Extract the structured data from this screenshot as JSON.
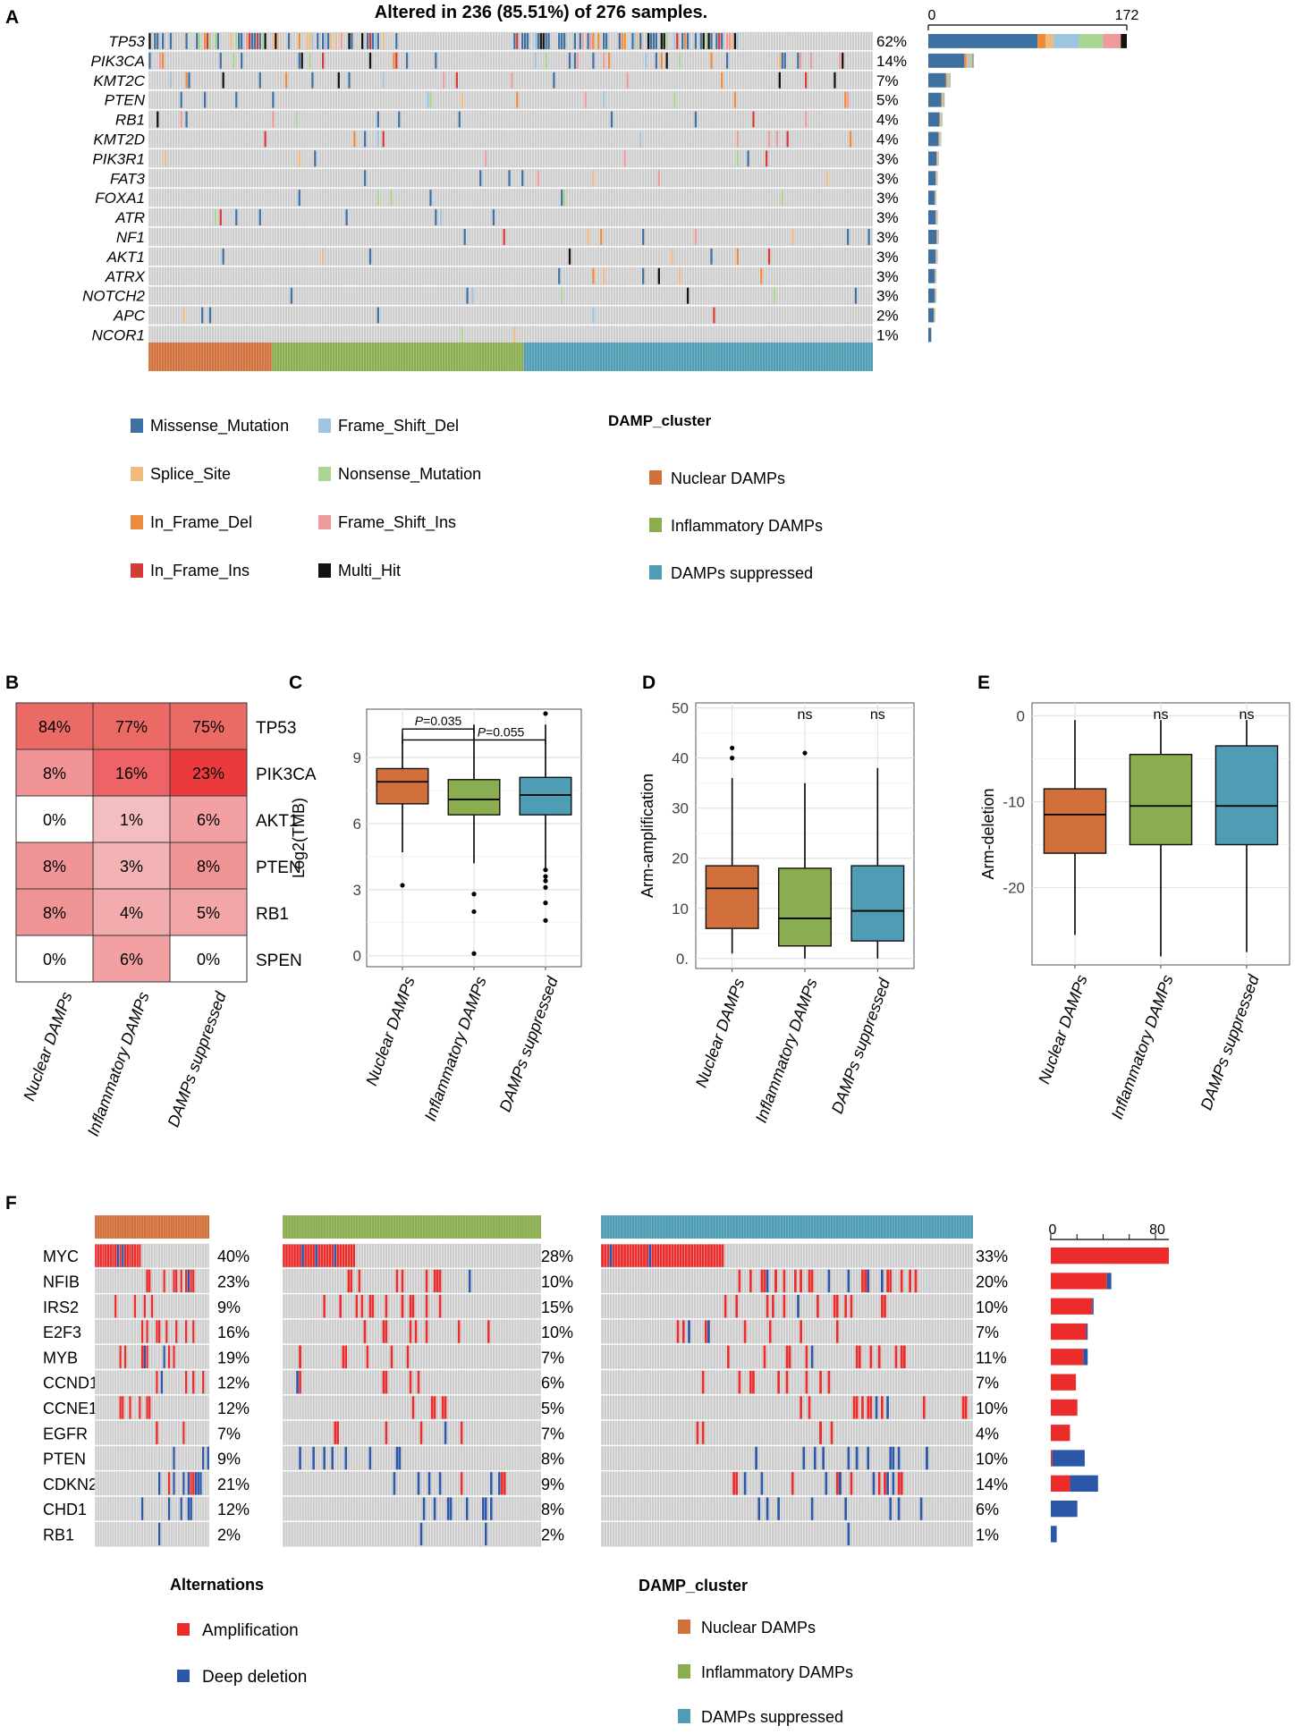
{
  "colors": {
    "missense": "#3e70a2",
    "frame_shift_del": "#9fc4de",
    "splice_site": "#f0b97d",
    "nonsense": "#a9d591",
    "in_frame_del": "#ec8a3d",
    "frame_shift_ins": "#ee999c",
    "in_frame_ins": "#d63a37",
    "multi_hit": "#111111",
    "nuclear": "#d2703b",
    "inflammatory": "#8aad4f",
    "suppressed": "#4e9db4",
    "bg_cell": "#cccccc",
    "amp": "#ec2b2b",
    "del": "#2c57a8",
    "box_line": "#000000"
  },
  "panel_labels": {
    "A": "A",
    "B": "B",
    "C": "C",
    "D": "D",
    "E": "E",
    "F": "F"
  },
  "panelA": {
    "title": "Altered in 236 (85.51%) of 276 samples.",
    "genes": [
      "TP53",
      "PIK3CA",
      "KMT2C",
      "PTEN",
      "RB1",
      "KMT2D",
      "PIK3R1",
      "FAT3",
      "FOXA1",
      "ATR",
      "NF1",
      "AKT1",
      "ATRX",
      "NOTCH2",
      "APC",
      "NCOR1"
    ],
    "percents": [
      "62%",
      "14%",
      "7%",
      "5%",
      "4%",
      "4%",
      "3%",
      "3%",
      "3%",
      "3%",
      "3%",
      "3%",
      "3%",
      "3%",
      "2%",
      "1%"
    ],
    "counts": [
      172,
      39,
      19,
      14,
      12,
      11,
      9,
      8,
      7,
      8,
      9,
      8,
      7,
      7,
      6,
      3
    ],
    "axis_min_label": "0",
    "axis_max_label": "172",
    "axis_max": 172,
    "n_samples": 276,
    "group_sizes": [
      47,
      96,
      133
    ]
  },
  "legendA": {
    "items": [
      {
        "label": "Missense_Mutation",
        "key": "missense"
      },
      {
        "label": "Frame_Shift_Del",
        "key": "frame_shift_del"
      },
      {
        "label": "Splice_Site",
        "key": "splice_site"
      },
      {
        "label": "Nonsense_Mutation",
        "key": "nonsense"
      },
      {
        "label": "In_Frame_Del",
        "key": "in_frame_del"
      },
      {
        "label": "Frame_Shift_Ins",
        "key": "frame_shift_ins"
      },
      {
        "label": "In_Frame_Ins",
        "key": "in_frame_ins"
      },
      {
        "label": "Multi_Hit",
        "key": "multi_hit"
      }
    ],
    "cluster_title": "DAMP_cluster",
    "clusters": [
      {
        "label": "Nuclear DAMPs",
        "key": "nuclear"
      },
      {
        "label": "Inflammatory DAMPs",
        "key": "inflammatory"
      },
      {
        "label": "DAMPs suppressed",
        "key": "suppressed"
      }
    ]
  },
  "panelB": {
    "columns": [
      "Nuclear DAMPs",
      "Inflammatory DAMPs",
      "DAMPs suppressed"
    ],
    "rows": [
      "TP53",
      "PIK3CA",
      "AKT1",
      "PTEN",
      "RB1",
      "SPEN"
    ],
    "values": [
      [
        84,
        77,
        75
      ],
      [
        8,
        16,
        23
      ],
      [
        0,
        1,
        6
      ],
      [
        8,
        3,
        8
      ],
      [
        8,
        4,
        5
      ],
      [
        0,
        6,
        0
      ]
    ],
    "labels": [
      [
        "84%",
        "77%",
        "75%"
      ],
      [
        "8%",
        "16%",
        "23%"
      ],
      [
        "0%",
        "1%",
        "6%"
      ],
      [
        "8%",
        "3%",
        "8%"
      ],
      [
        "8%",
        "4%",
        "5%"
      ],
      [
        "0%",
        "6%",
        "0%"
      ]
    ]
  },
  "chart_data": [
    {
      "type": "boxplot",
      "panel": "C",
      "ylabel": "Log2(TMB)",
      "ylim": [
        -0.5,
        11.2
      ],
      "yticks": [
        0,
        3,
        6,
        9
      ],
      "ytick_labels": [
        "0",
        "3",
        "6",
        "9"
      ],
      "categories": [
        "Nuclear DAMPs",
        "Inflammatory DAMPs",
        "DAMPs suppressed"
      ],
      "boxes": [
        {
          "q1": 6.9,
          "median": 7.9,
          "q3": 8.5,
          "wlo": 4.7,
          "whi": 10.1,
          "outliers": [
            3.2
          ]
        },
        {
          "q1": 6.4,
          "median": 7.1,
          "q3": 8.0,
          "wlo": 4.2,
          "whi": 10.5,
          "outliers": [
            2.8,
            2.0,
            0.1
          ]
        },
        {
          "q1": 6.4,
          "median": 7.3,
          "q3": 8.1,
          "wlo": 4.0,
          "whi": 10.5,
          "outliers": [
            3.9,
            3.6,
            3.4,
            3.1,
            2.4,
            1.6,
            11.0
          ]
        }
      ],
      "brackets": [
        {
          "from": 0,
          "to": 1,
          "label": "P=0.035",
          "p_prefix": "P",
          "p_value": "=0.035",
          "y": 10.3
        },
        {
          "from": 0,
          "to": 2,
          "label": "P=0.055",
          "p_prefix": "P",
          "p_value": "=0.055",
          "y": 9.8
        }
      ]
    },
    {
      "type": "boxplot",
      "panel": "D",
      "ylabel": "Arm-amplification",
      "ylim": [
        -2,
        51
      ],
      "yticks": [
        0,
        10,
        20,
        30,
        40,
        50
      ],
      "ytick_labels": [
        "0.",
        "10",
        "20",
        "30",
        "40",
        "50"
      ],
      "categories": [
        "Nuclear DAMPs",
        "Inflammatory DAMPs",
        "DAMPs suppressed"
      ],
      "boxes": [
        {
          "q1": 6,
          "median": 14,
          "q3": 18.5,
          "wlo": 1,
          "whi": 36,
          "outliers": [
            40,
            42
          ]
        },
        {
          "q1": 2.5,
          "median": 8,
          "q3": 18,
          "wlo": 0,
          "whi": 35,
          "outliers": [
            41
          ]
        },
        {
          "q1": 3.5,
          "median": 9.5,
          "q3": 18.5,
          "wlo": 0,
          "whi": 38,
          "outliers": []
        }
      ],
      "annotations": [
        "",
        "ns",
        "ns"
      ]
    },
    {
      "type": "boxplot",
      "panel": "E",
      "ylabel": "Arm-deletion",
      "ylim": [
        -29,
        1.5
      ],
      "yticks": [
        0,
        -10,
        -20
      ],
      "ytick_labels": [
        "0",
        "-10",
        "-20"
      ],
      "categories": [
        "Nuclear DAMPs",
        "Inflammatory DAMPs",
        "DAMPs suppressed"
      ],
      "boxes": [
        {
          "q1": -16,
          "median": -11.5,
          "q3": -8.5,
          "wlo": -25.5,
          "whi": -0.5,
          "outliers": []
        },
        {
          "q1": -15,
          "median": -10.5,
          "q3": -4.5,
          "wlo": -28,
          "whi": -0.5,
          "outliers": []
        },
        {
          "q1": -15,
          "median": -10.5,
          "q3": -3.5,
          "wlo": -27.5,
          "whi": -0.5,
          "outliers": []
        }
      ],
      "annotations": [
        "",
        "ns",
        "ns"
      ]
    }
  ],
  "panelF": {
    "genes": [
      "MYC",
      "NFIB",
      "IRS2",
      "E2F3",
      "MYB",
      "CCND1",
      "CCNE1",
      "EGFR",
      "PTEN",
      "CDKN2A",
      "CHD1",
      "RB1"
    ],
    "percents": [
      [
        "40%",
        "23%",
        "9%",
        "16%",
        "19%",
        "12%",
        "12%",
        "7%",
        "9%",
        "21%",
        "12%",
        "2%"
      ],
      [
        "28%",
        "10%",
        "15%",
        "10%",
        "7%",
        "6%",
        "5%",
        "7%",
        "8%",
        "9%",
        "8%",
        "2%"
      ],
      [
        "33%",
        "20%",
        "10%",
        "7%",
        "11%",
        "7%",
        "10%",
        "4%",
        "10%",
        "14%",
        "6%",
        "1%"
      ]
    ],
    "amp_counts": [
      80,
      38,
      28,
      24,
      22,
      17,
      18,
      13,
      1,
      13,
      0,
      0
    ],
    "del_counts": [
      0,
      3,
      1,
      1,
      3,
      0,
      0,
      0,
      22,
      19,
      18,
      4
    ],
    "axis_min_label": "0",
    "axis_max_label": "80",
    "axis_max": 80,
    "group_sizes": [
      47,
      96,
      133
    ]
  },
  "legendF": {
    "title": "Alternations",
    "items": [
      {
        "label": "Amplification",
        "key": "amp"
      },
      {
        "label": "Deep deletion",
        "key": "del"
      }
    ],
    "cluster_title": "DAMP_cluster",
    "clusters": [
      {
        "label": "Nuclear DAMPs",
        "key": "nuclear"
      },
      {
        "label": "Inflammatory DAMPs",
        "key": "inflammatory"
      },
      {
        "label": "DAMPs suppressed",
        "key": "suppressed"
      }
    ]
  }
}
